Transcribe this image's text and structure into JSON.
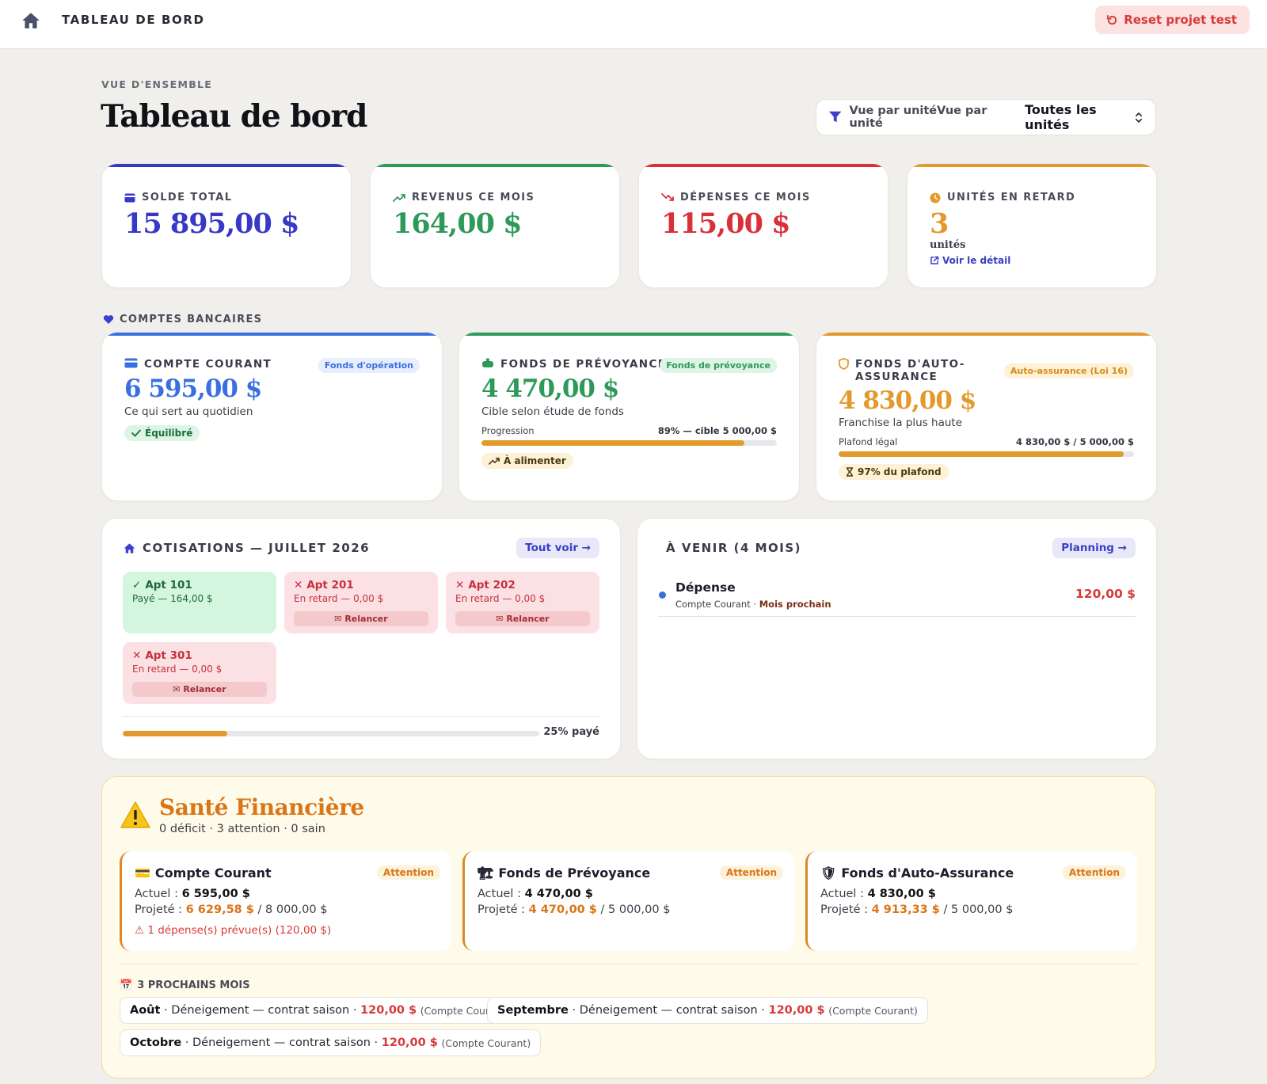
{
  "topbar": {
    "title": "TABLEAU DE BORD",
    "reset_label": "Reset projet test"
  },
  "header": {
    "eyebrow": "VUE D'ENSEMBLE",
    "title": "Tableau de bord",
    "unit_filter_label": "Vue par unitéVue par unité",
    "unit_filter_value": "Toutes les unités"
  },
  "stats": {
    "solde": {
      "label": "SOLDE TOTAL",
      "value": "15 895,00 $",
      "color": "#3838c8"
    },
    "revenus": {
      "label": "REVENUS CE MOIS",
      "value": "164,00 $",
      "color": "#2e9a5a"
    },
    "depenses": {
      "label": "DÉPENSES CE MOIS",
      "value": "115,00 $",
      "color": "#d9303a"
    },
    "retard": {
      "label": "UNITÉS EN RETARD",
      "value": "3",
      "unit": "unités",
      "link": "Voir le détail",
      "color": "#e39a2c"
    }
  },
  "accounts": {
    "section_label": "COMPTES BANCAIRES",
    "courant": {
      "label": "COMPTE COURANT",
      "tag": "Fonds d'opération",
      "value": "6 595,00 $",
      "desc": "Ce qui sert au quotidien",
      "status": "Équilibré"
    },
    "prevoyance": {
      "label": "FONDS DE PRÉVOYANCE",
      "tag": "Fonds de prévoyance",
      "value": "4 470,00 $",
      "desc": "Cible selon étude de fonds",
      "progress_label": "Progression",
      "progress_text": "89% — cible 5 000,00 $",
      "progress": 0.89,
      "status": "À alimenter"
    },
    "auto": {
      "label": "FONDS D'AUTO-ASSURANCE",
      "tag": "Auto-assurance (Loi 16)",
      "value": "4 830,00 $",
      "desc": "Franchise la plus haute",
      "progress_label": "Plafond légal",
      "progress_text": "4 830,00 $ / 5 000,00 $",
      "progress": 0.966,
      "status": "97% du plafond"
    }
  },
  "cotisations": {
    "title": "COTISATIONS — JUILLET 2026",
    "button": "Tout voir →",
    "units": [
      {
        "name": "Apt 101",
        "status": "Payé — 164,00 $"
      },
      {
        "name": "Apt 201",
        "status": "En retard — 0,00 $",
        "action": "✉ Relancer"
      },
      {
        "name": "Apt 202",
        "status": "En retard — 0,00 $",
        "action": "✉ Relancer"
      },
      {
        "name": "Apt 301",
        "status": "En retard — 0,00 $",
        "action": "✉ Relancer"
      }
    ],
    "progress": 0.25,
    "progress_text": "25% payé"
  },
  "upcoming": {
    "title": "À VENIR (4 MOIS)",
    "button": "Planning →",
    "items": [
      {
        "name": "Dépense",
        "account": "Compte Courant",
        "when": "Mois prochain",
        "amount": "120,00 $"
      }
    ]
  },
  "health": {
    "title": "Santé Financière",
    "summary": "0 déficit · 3 attention · 0 sain",
    "cards": [
      {
        "name": "Compte Courant",
        "badge": "Attention",
        "actual_label": "Actuel :",
        "actual": "6 595,00 $",
        "proj_label": "Projeté :",
        "projected": "6 629,58 $",
        "target": "/ 8 000,00 $",
        "warning": "⚠ 1 dépense(s) prévue(s) (120,00 $)"
      },
      {
        "name": "Fonds de Prévoyance",
        "badge": "Attention",
        "actual_label": "Actuel :",
        "actual": "4 470,00 $",
        "proj_label": "Projeté :",
        "projected": "4 470,00 $",
        "target": "/ 5 000,00 $"
      },
      {
        "name": "Fonds d'Auto-Assurance",
        "badge": "Attention",
        "actual_label": "Actuel :",
        "actual": "4 830,00 $",
        "proj_label": "Projeté :",
        "projected": "4 913,33 $",
        "target": "/ 5 000,00 $"
      }
    ],
    "months_label": "3 PROCHAINS MOIS",
    "months": [
      {
        "month": "Août",
        "desc": "· Déneigement — contrat saison ·",
        "amount": "120,00 $",
        "account": "(Compte Courant)"
      },
      {
        "month": "Septembre",
        "desc": "· Déneigement — contrat saison ·",
        "amount": "120,00 $",
        "account": "(Compte Courant)"
      },
      {
        "month": "Octobre",
        "desc": "· Déneigement — contrat saison ·",
        "amount": "120,00 $",
        "account": "(Compte Courant)"
      }
    ]
  }
}
